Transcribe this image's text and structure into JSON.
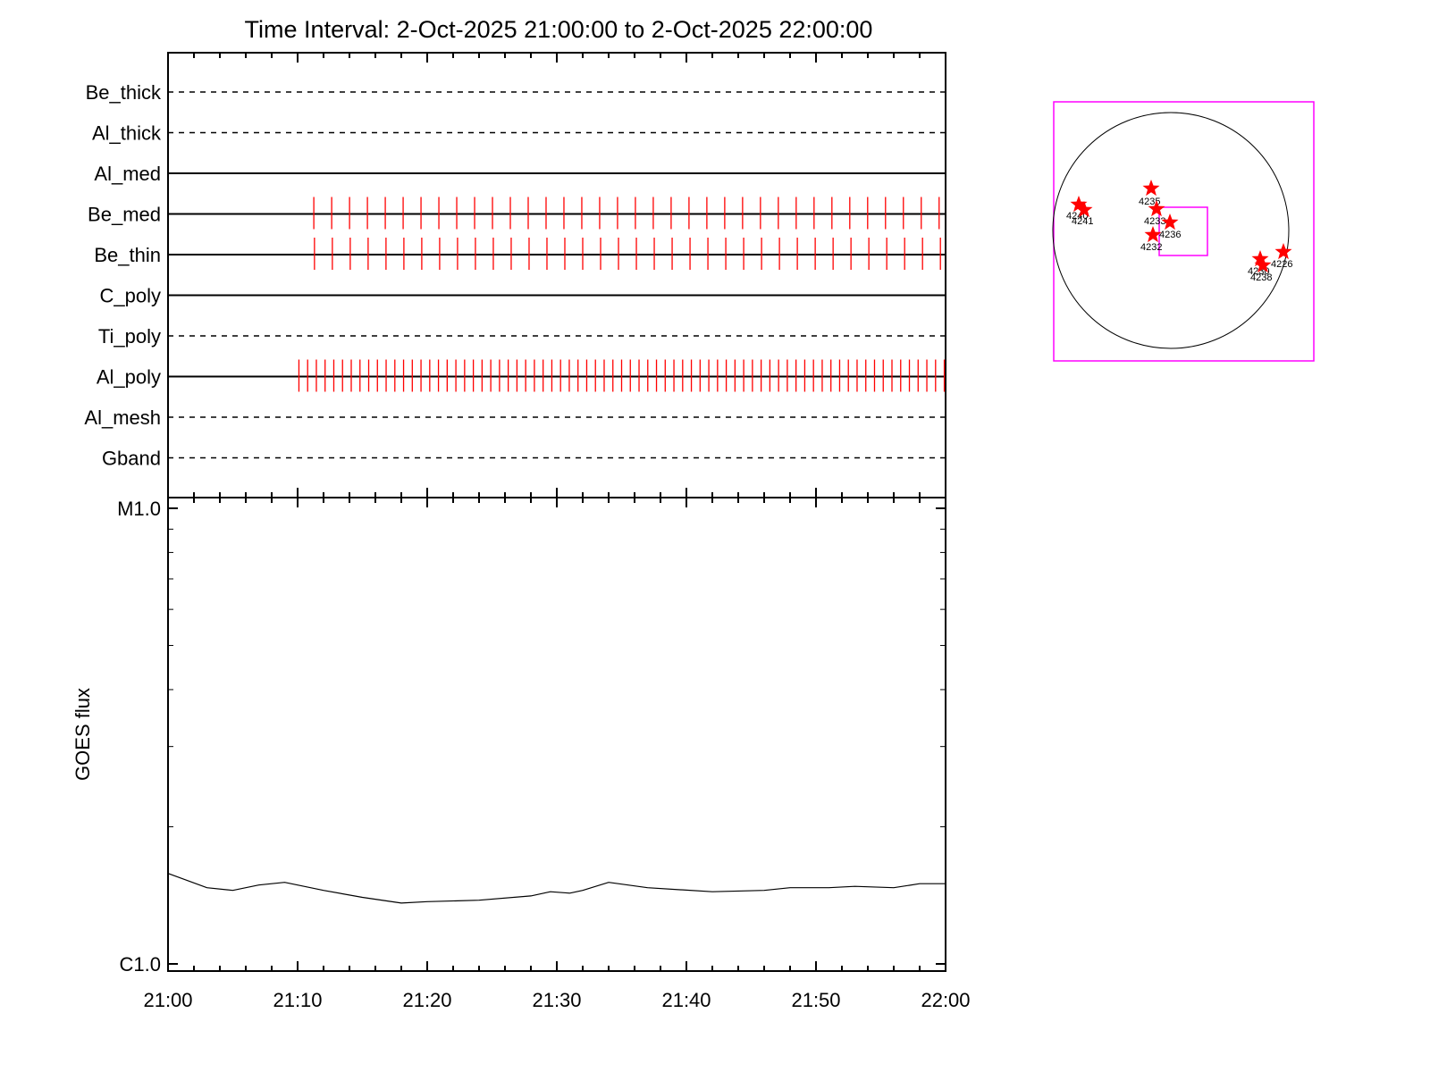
{
  "chart_data": [
    {
      "type": "timeline",
      "title": "Time Interval:  2-Oct-2025 21:00:00 to  2-Oct-2025 22:00:00",
      "x_range": [
        "21:00",
        "22:00"
      ],
      "x_ticks": [
        "21:00",
        "21:10",
        "21:20",
        "21:30",
        "21:40",
        "21:50",
        "22:00"
      ],
      "rows": [
        {
          "label": "Be_thick",
          "style": "dashed",
          "events": null
        },
        {
          "label": "Al_thick",
          "style": "dashed",
          "events": null
        },
        {
          "label": "Al_med",
          "style": "solid",
          "events": null
        },
        {
          "label": "Be_med",
          "style": "solid",
          "events": {
            "start_min": 11.25,
            "end_min": 59.5,
            "count": 36
          }
        },
        {
          "label": "Be_thin",
          "style": "solid",
          "events": {
            "start_min": 11.3,
            "end_min": 59.6,
            "count": 36
          }
        },
        {
          "label": "C_poly",
          "style": "solid",
          "events": null
        },
        {
          "label": "Ti_poly",
          "style": "dashed",
          "events": null
        },
        {
          "label": "Al_poly",
          "style": "solid",
          "events": {
            "start_min": 10.1,
            "end_min": 59.9,
            "count": 75
          }
        },
        {
          "label": "Al_mesh",
          "style": "dashed",
          "events": null
        },
        {
          "label": "Gband",
          "style": "dashed",
          "events": null
        }
      ],
      "event_color": "#ff0000"
    },
    {
      "type": "line",
      "ylabel": "GOES flux",
      "y_scale": "log",
      "ylim": [
        1e-06,
        1e-05
      ],
      "y_tick_labels": [
        "C1.0",
        "M1.0"
      ],
      "x_tick_labels": [
        "21:00",
        "21:10",
        "21:20",
        "21:30",
        "21:40",
        "21:50",
        "22:00"
      ],
      "x_minutes": [
        0,
        3,
        5,
        7,
        9,
        12,
        15,
        18,
        20,
        24,
        28,
        29.5,
        31,
        32,
        34,
        37,
        42,
        46,
        48,
        51,
        53,
        56,
        58,
        60
      ],
      "values": [
        1.58e-06,
        1.47e-06,
        1.45e-06,
        1.49e-06,
        1.51e-06,
        1.45e-06,
        1.4e-06,
        1.36e-06,
        1.37e-06,
        1.38e-06,
        1.41e-06,
        1.44e-06,
        1.43e-06,
        1.45e-06,
        1.51e-06,
        1.47e-06,
        1.44e-06,
        1.45e-06,
        1.47e-06,
        1.47e-06,
        1.48e-06,
        1.47e-06,
        1.5e-06,
        1.5e-06
      ]
    },
    {
      "type": "scatter",
      "description_kind": "solar disk map",
      "points": [
        {
          "label": "4240"
        },
        {
          "label": "4241"
        },
        {
          "label": "4235"
        },
        {
          "label": "4233"
        },
        {
          "label": "4236"
        },
        {
          "label": "4232"
        },
        {
          "label": "4230"
        },
        {
          "label": "4238"
        },
        {
          "label": "4226"
        }
      ],
      "marker_color": "#ff0000",
      "frame_color": "#ff00ff"
    }
  ]
}
